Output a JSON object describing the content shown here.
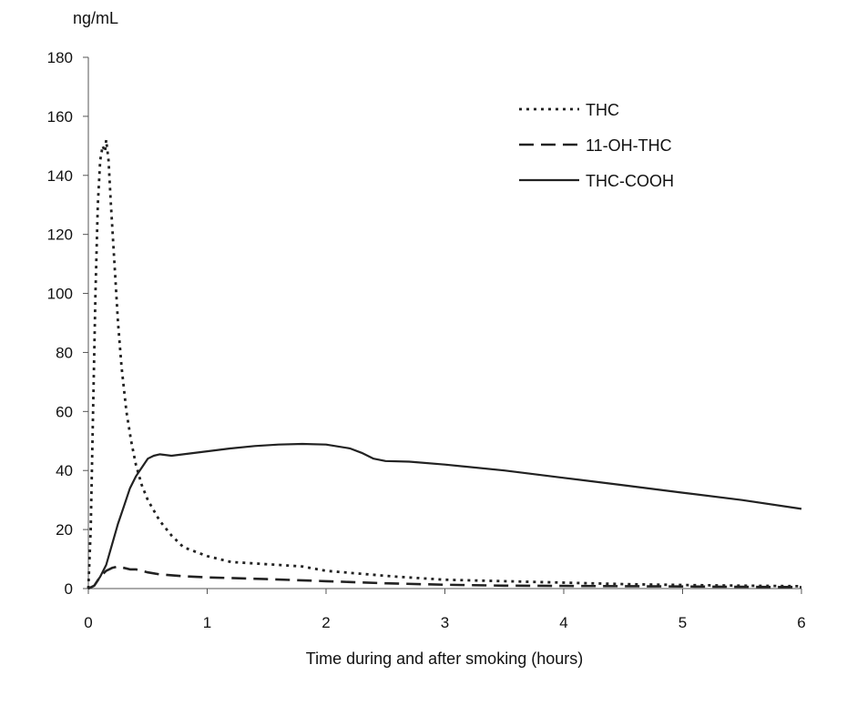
{
  "chart_data": {
    "type": "line",
    "title": "",
    "ylabel": "ng/mL",
    "xlabel": "Time during and after smoking (hours)",
    "xlim": [
      0,
      6
    ],
    "ylim": [
      0,
      180
    ],
    "xticks": [
      0,
      1,
      2,
      3,
      4,
      5,
      6
    ],
    "yticks": [
      0,
      20,
      40,
      60,
      80,
      100,
      120,
      140,
      160,
      180
    ],
    "grid": false,
    "legend_position": "top-right",
    "series": [
      {
        "name": "THC",
        "style": "dotted",
        "color": "#222222",
        "x": [
          0,
          0.02,
          0.04,
          0.06,
          0.08,
          0.1,
          0.12,
          0.14,
          0.15,
          0.17,
          0.19,
          0.22,
          0.25,
          0.28,
          0.32,
          0.36,
          0.4,
          0.45,
          0.5,
          0.6,
          0.7,
          0.8,
          1.0,
          1.2,
          1.4,
          1.6,
          1.8,
          2.0,
          2.3,
          2.6,
          3.0,
          3.5,
          4.0,
          4.5,
          5.0,
          5.5,
          6.0
        ],
        "y": [
          0,
          20,
          60,
          100,
          130,
          145,
          150,
          148,
          152,
          145,
          130,
          110,
          90,
          75,
          60,
          50,
          42,
          35,
          30,
          23,
          18,
          14,
          11,
          9,
          8.5,
          8,
          7.5,
          6,
          5,
          4,
          3,
          2.5,
          2,
          1.5,
          1.2,
          1,
          0.8
        ]
      },
      {
        "name": "11-OH-THC",
        "style": "dashed",
        "color": "#222222",
        "x": [
          0,
          0.05,
          0.1,
          0.15,
          0.2,
          0.25,
          0.3,
          0.35,
          0.4,
          0.5,
          0.6,
          0.8,
          1.0,
          1.5,
          2.0,
          2.5,
          3.0,
          3.5,
          4.0,
          4.5,
          5.0,
          5.5,
          6.0
        ],
        "y": [
          0,
          1,
          4,
          6,
          7,
          7.5,
          7,
          6.5,
          6.5,
          5.5,
          4.8,
          4.2,
          3.8,
          3.2,
          2.5,
          1.8,
          1.3,
          1.0,
          0.9,
          0.8,
          0.7,
          0.6,
          0.5
        ]
      },
      {
        "name": "THC-COOH",
        "style": "solid",
        "color": "#222222",
        "x": [
          0,
          0.05,
          0.1,
          0.15,
          0.2,
          0.25,
          0.3,
          0.35,
          0.4,
          0.45,
          0.5,
          0.55,
          0.6,
          0.7,
          0.8,
          1.0,
          1.2,
          1.4,
          1.6,
          1.8,
          2.0,
          2.2,
          2.3,
          2.4,
          2.5,
          2.7,
          3.0,
          3.5,
          4.0,
          4.5,
          5.0,
          5.5,
          6.0
        ],
        "y": [
          0,
          1,
          4,
          8,
          15,
          22,
          28,
          34,
          38,
          41,
          44,
          45,
          45.5,
          45,
          45.5,
          46.5,
          47.5,
          48.3,
          48.8,
          49,
          48.8,
          47.5,
          46,
          44,
          43.2,
          43,
          42,
          40,
          37.5,
          35,
          32.5,
          30,
          27
        ]
      }
    ]
  }
}
